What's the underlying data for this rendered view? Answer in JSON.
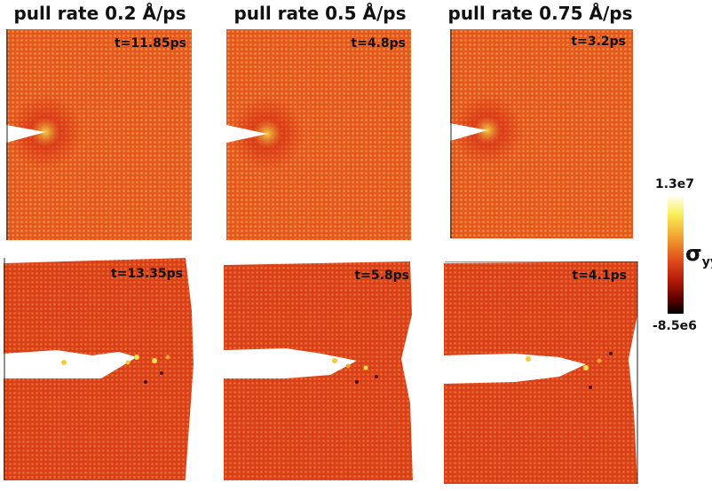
{
  "columns": [
    {
      "title": "pull rate 0.2 Å/ps"
    },
    {
      "title": "pull rate 0.5 Å/ps"
    },
    {
      "title": "pull rate 0.75 Å/ps"
    }
  ],
  "panels": {
    "top": [
      {
        "time": "t=11.85ps"
      },
      {
        "time": "t=4.8ps"
      },
      {
        "time": "t=3.2ps"
      }
    ],
    "bottom": [
      {
        "time": "t=13.35ps"
      },
      {
        "time": "t=5.8ps"
      },
      {
        "time": "t=4.1ps"
      }
    ]
  },
  "colorbar": {
    "max_label": "1.3e7",
    "min_label": "-8.5e6",
    "quantity_symbol": "σ",
    "quantity_subscript": "yy",
    "colors": [
      "#000000",
      "#b11a0a",
      "#e04a1a",
      "#f0a030",
      "#f9ef58",
      "#ffffe8"
    ]
  },
  "colors": {
    "lattice_base": "#e4571f",
    "lattice_dot": "#f28a3a",
    "fractured_base": "#d9401a",
    "crack_tip_glow": "#f5e04a"
  }
}
